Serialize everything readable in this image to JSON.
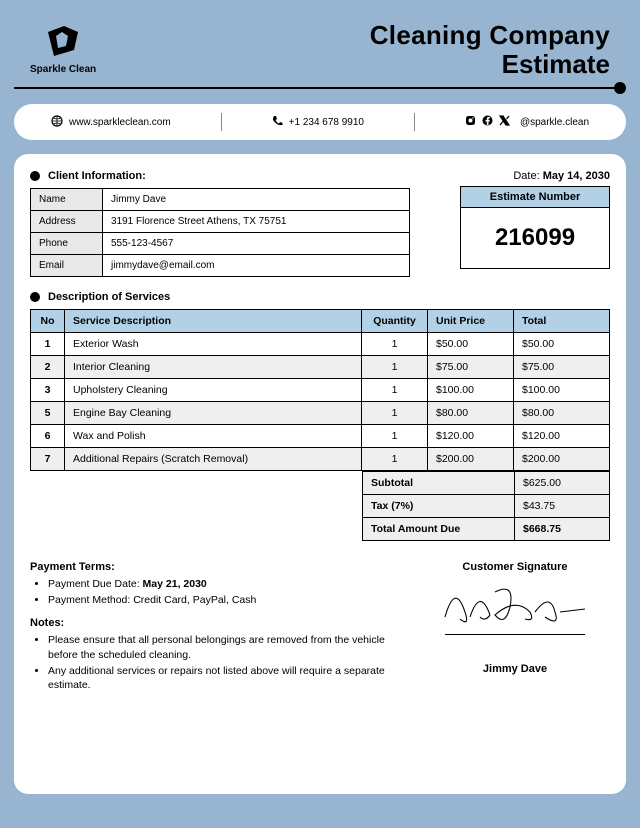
{
  "brand": "Sparkle Clean",
  "title1": "Cleaning Company",
  "title2": "Estimate",
  "contact": {
    "website": "www.sparkleclean.com",
    "phone": "+1 234 678 9910",
    "social": "@sparkle.clean"
  },
  "client_section_title": "Client Information:",
  "date_label": "Date: ",
  "date_value": "May 14, 2030",
  "client_labels": {
    "name": "Name",
    "address": "Address",
    "phone": "Phone",
    "email": "Email"
  },
  "client": {
    "name": "Jimmy Dave",
    "address": "3191 Florence Street Athens, TX 75751",
    "phone": "555-123-4567",
    "email": "jimmydave@email.com"
  },
  "estimate_label": "Estimate Number",
  "estimate_number": "216099",
  "services_section_title": "Description of Services",
  "svc_headers": {
    "no": "No",
    "desc": "Service Description",
    "qty": "Quantity",
    "unit": "Unit Price",
    "total": "Total"
  },
  "services": [
    {
      "no": "1",
      "desc": "Exterior Wash",
      "qty": "1",
      "unit": "$50.00",
      "total": "$50.00"
    },
    {
      "no": "2",
      "desc": "Interior Cleaning",
      "qty": "1",
      "unit": "$75.00",
      "total": "$75.00"
    },
    {
      "no": "3",
      "desc": "Upholstery Cleaning",
      "qty": "1",
      "unit": "$100.00",
      "total": "$100.00"
    },
    {
      "no": "5",
      "desc": "Engine Bay Cleaning",
      "qty": "1",
      "unit": "$80.00",
      "total": "$80.00"
    },
    {
      "no": "6",
      "desc": "Wax and Polish",
      "qty": "1",
      "unit": "$120.00",
      "total": "$120.00"
    },
    {
      "no": "7",
      "desc": "Additional Repairs (Scratch Removal)",
      "qty": "1",
      "unit": "$200.00",
      "total": "$200.00"
    }
  ],
  "totals": {
    "subtotal_label": "Subtotal",
    "subtotal": "$625.00",
    "tax_label": "Tax (7%)",
    "tax": "$43.75",
    "due_label": "Total Amount Due",
    "due": "$668.75"
  },
  "payment_terms_title": "Payment Terms:",
  "payment_terms": [
    "Payment Due Date: <b>May 21, 2030</b>",
    "Payment Method: Credit Card, PayPal, Cash"
  ],
  "notes_title": "Notes:",
  "notes": [
    "Please ensure that all personal belongings are removed from the vehicle before the scheduled cleaning.",
    "Any additional services or repairs not listed above will require a separate estimate."
  ],
  "signature_title": "Customer Signature",
  "signature_name": "Jimmy Dave",
  "colors": {
    "page_bg": "#97b5d1",
    "header_bg": "#b3d1e6",
    "alt_row": "#efefef"
  }
}
